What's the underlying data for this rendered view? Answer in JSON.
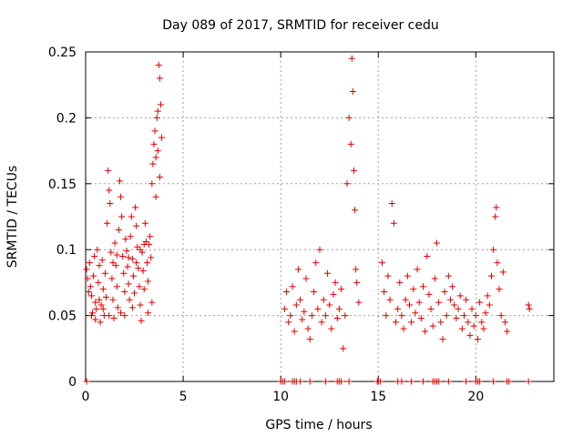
{
  "chart_data": {
    "type": "scatter",
    "title": "Day 089 of 2017, SRMTID for receiver cedu",
    "xlabel": "GPS time / hours",
    "ylabel": "SRMTID / TECUs",
    "xlim": [
      0,
      24
    ],
    "ylim": [
      0,
      0.25
    ],
    "x_ticks": [
      0,
      5,
      10,
      15,
      20
    ],
    "x_tick_labels": [
      "0",
      "5",
      "10",
      "15",
      "20"
    ],
    "y_ticks": [
      0,
      0.05,
      0.1,
      0.15,
      0.2,
      0.25
    ],
    "y_tick_labels": [
      "0",
      "0.05",
      "0.1",
      "0.15",
      "0.2",
      "0.25"
    ],
    "grid": true,
    "marker": "+",
    "colors": {
      "marker": "#e00000",
      "grid": "#a0a0a0",
      "frame": "#000000"
    },
    "series": [
      {
        "name": "SRMTID",
        "points": [
          [
            0.05,
            0.085
          ],
          [
            0.1,
            0.078
          ],
          [
            0.15,
            0.068
          ],
          [
            0.2,
            0.09
          ],
          [
            0.25,
            0.072
          ],
          [
            0.3,
            0.065
          ],
          [
            0.35,
            0.052
          ],
          [
            0.4,
            0.08
          ],
          [
            0.45,
            0.095
          ],
          [
            0.5,
            0.06
          ],
          [
            0.55,
            0.055
          ],
          [
            0.6,
            0.1
          ],
          [
            0.65,
            0.075
          ],
          [
            0.7,
            0.088
          ],
          [
            0.75,
            0.045
          ],
          [
            0.8,
            0.058
          ],
          [
            0.85,
            0.092
          ],
          [
            0.9,
            0.07
          ],
          [
            0.95,
            0.05
          ],
          [
            1.0,
            0.082
          ],
          [
            1.05,
            0.064
          ],
          [
            1.1,
            0.12
          ],
          [
            1.15,
            0.16
          ],
          [
            1.2,
            0.145
          ],
          [
            1.25,
            0.135
          ],
          [
            1.3,
            0.098
          ],
          [
            1.35,
            0.078
          ],
          [
            1.4,
            0.062
          ],
          [
            1.45,
            0.048
          ],
          [
            1.5,
            0.105
          ],
          [
            1.55,
            0.088
          ],
          [
            1.6,
            0.072
          ],
          [
            1.65,
            0.056
          ],
          [
            1.7,
            0.115
          ],
          [
            1.75,
            0.152
          ],
          [
            1.8,
            0.14
          ],
          [
            1.85,
            0.125
          ],
          [
            1.9,
            0.095
          ],
          [
            1.95,
            0.082
          ],
          [
            2.0,
            0.068
          ],
          [
            2.05,
            0.108
          ],
          [
            2.1,
            0.099
          ],
          [
            2.15,
            0.087
          ],
          [
            2.2,
            0.074
          ],
          [
            2.25,
            0.062
          ],
          [
            2.3,
            0.11
          ],
          [
            2.35,
            0.125
          ],
          [
            2.4,
            0.093
          ],
          [
            2.45,
            0.08
          ],
          [
            2.5,
            0.067
          ],
          [
            2.55,
            0.132
          ],
          [
            2.6,
            0.118
          ],
          [
            2.65,
            0.102
          ],
          [
            2.7,
            0.086
          ],
          [
            2.75,
            0.072
          ],
          [
            2.8,
            0.058
          ],
          [
            2.85,
            0.046
          ],
          [
            2.9,
            0.098
          ],
          [
            2.95,
            0.084
          ],
          [
            3.0,
            0.07
          ],
          [
            3.05,
            0.12
          ],
          [
            3.1,
            0.106
          ],
          [
            3.15,
            0.09
          ],
          [
            3.2,
            0.076
          ],
          [
            3.25,
            0.104
          ],
          [
            3.3,
            0.11
          ],
          [
            3.35,
            0.094
          ],
          [
            3.4,
            0.15
          ],
          [
            3.45,
            0.165
          ],
          [
            3.5,
            0.18
          ],
          [
            3.55,
            0.19
          ],
          [
            3.6,
            0.17
          ],
          [
            3.65,
            0.2
          ],
          [
            3.7,
            0.205
          ],
          [
            3.75,
            0.24
          ],
          [
            3.8,
            0.23
          ],
          [
            3.85,
            0.21
          ],
          [
            3.9,
            0.185
          ],
          [
            0.3,
            0.05
          ],
          [
            0.5,
            0.047
          ],
          [
            0.7,
            0.062
          ],
          [
            0.9,
            0.055
          ],
          [
            1.2,
            0.05
          ],
          [
            1.4,
            0.09
          ],
          [
            1.6,
            0.096
          ],
          [
            1.8,
            0.052
          ],
          [
            2.0,
            0.05
          ],
          [
            2.2,
            0.094
          ],
          [
            2.4,
            0.056
          ],
          [
            2.6,
            0.09
          ],
          [
            2.8,
            0.1
          ],
          [
            3.0,
            0.104
          ],
          [
            3.2,
            0.052
          ],
          [
            3.4,
            0.06
          ],
          [
            3.6,
            0.14
          ],
          [
            3.7,
            0.175
          ],
          [
            3.8,
            0.155
          ],
          [
            10.2,
            0.055
          ],
          [
            10.3,
            0.068
          ],
          [
            10.4,
            0.045
          ],
          [
            10.5,
            0.05
          ],
          [
            10.6,
            0.072
          ],
          [
            10.7,
            0.038
          ],
          [
            10.8,
            0.058
          ],
          [
            10.9,
            0.085
          ],
          [
            11.0,
            0.062
          ],
          [
            11.1,
            0.047
          ],
          [
            11.2,
            0.053
          ],
          [
            11.3,
            0.078
          ],
          [
            11.4,
            0.04
          ],
          [
            11.5,
            0.032
          ],
          [
            11.6,
            0.05
          ],
          [
            11.7,
            0.068
          ],
          [
            11.8,
            0.09
          ],
          [
            11.9,
            0.055
          ],
          [
            12.0,
            0.1
          ],
          [
            12.1,
            0.045
          ],
          [
            12.2,
            0.062
          ],
          [
            12.3,
            0.05
          ],
          [
            12.4,
            0.082
          ],
          [
            12.5,
            0.058
          ],
          [
            12.6,
            0.04
          ],
          [
            12.7,
            0.066
          ],
          [
            12.8,
            0.075
          ],
          [
            12.9,
            0.048
          ],
          [
            13.0,
            0.055
          ],
          [
            13.1,
            0.07
          ],
          [
            13.2,
            0.025
          ],
          [
            13.3,
            0.05
          ],
          [
            13.4,
            0.15
          ],
          [
            13.5,
            0.2
          ],
          [
            13.6,
            0.18
          ],
          [
            13.65,
            0.245
          ],
          [
            13.7,
            0.22
          ],
          [
            13.75,
            0.16
          ],
          [
            13.8,
            0.13
          ],
          [
            13.85,
            0.085
          ],
          [
            13.9,
            0.075
          ],
          [
            14.0,
            0.06
          ],
          [
            15.2,
            0.09
          ],
          [
            15.3,
            0.068
          ],
          [
            15.4,
            0.05
          ],
          [
            15.5,
            0.08
          ],
          [
            15.6,
            0.062
          ],
          [
            15.7,
            0.135
          ],
          [
            15.8,
            0.12
          ],
          [
            15.9,
            0.045
          ],
          [
            16.0,
            0.055
          ],
          [
            16.1,
            0.075
          ],
          [
            16.2,
            0.05
          ],
          [
            16.3,
            0.04
          ],
          [
            16.4,
            0.062
          ],
          [
            16.5,
            0.08
          ],
          [
            16.6,
            0.058
          ],
          [
            16.7,
            0.045
          ],
          [
            16.8,
            0.07
          ],
          [
            16.9,
            0.052
          ],
          [
            17.0,
            0.085
          ],
          [
            17.1,
            0.06
          ],
          [
            17.2,
            0.048
          ],
          [
            17.3,
            0.072
          ],
          [
            17.4,
            0.038
          ],
          [
            17.5,
            0.095
          ],
          [
            17.6,
            0.066
          ],
          [
            17.7,
            0.055
          ],
          [
            17.8,
            0.042
          ],
          [
            17.9,
            0.078
          ],
          [
            18.0,
            0.105
          ],
          [
            18.1,
            0.06
          ],
          [
            18.2,
            0.045
          ],
          [
            18.3,
            0.032
          ],
          [
            18.4,
            0.068
          ],
          [
            18.5,
            0.05
          ],
          [
            18.6,
            0.08
          ],
          [
            18.7,
            0.062
          ],
          [
            18.8,
            0.072
          ],
          [
            18.9,
            0.058
          ],
          [
            19.0,
            0.048
          ],
          [
            19.1,
            0.055
          ],
          [
            19.2,
            0.065
          ],
          [
            19.3,
            0.04
          ],
          [
            19.4,
            0.05
          ],
          [
            19.5,
            0.062
          ],
          [
            19.6,
            0.045
          ],
          [
            19.7,
            0.035
          ],
          [
            19.8,
            0.055
          ],
          [
            19.9,
            0.042
          ],
          [
            20.0,
            0.05
          ],
          [
            20.1,
            0.032
          ],
          [
            20.2,
            0.06
          ],
          [
            20.3,
            0.045
          ],
          [
            20.4,
            0.04
          ],
          [
            20.5,
            0.052
          ],
          [
            20.6,
            0.065
          ],
          [
            20.7,
            0.058
          ],
          [
            20.8,
            0.08
          ],
          [
            20.9,
            0.1
          ],
          [
            21.0,
            0.125
          ],
          [
            21.05,
            0.132
          ],
          [
            21.1,
            0.09
          ],
          [
            21.2,
            0.07
          ],
          [
            21.3,
            0.05
          ],
          [
            21.4,
            0.083
          ],
          [
            21.5,
            0.045
          ],
          [
            21.6,
            0.038
          ],
          [
            22.7,
            0.058
          ],
          [
            22.75,
            0.055
          ],
          [
            0.05,
            0
          ],
          [
            10.0,
            0
          ],
          [
            10.1,
            0
          ],
          [
            10.2,
            0
          ],
          [
            10.6,
            0
          ],
          [
            10.7,
            0
          ],
          [
            10.8,
            0
          ],
          [
            11.0,
            0
          ],
          [
            11.5,
            0
          ],
          [
            12.3,
            0
          ],
          [
            12.9,
            0
          ],
          [
            13.0,
            0
          ],
          [
            13.1,
            0
          ],
          [
            13.5,
            0
          ],
          [
            14.95,
            0
          ],
          [
            15.0,
            0
          ],
          [
            15.1,
            0
          ],
          [
            16.0,
            0
          ],
          [
            16.2,
            0
          ],
          [
            16.7,
            0
          ],
          [
            17.3,
            0
          ],
          [
            17.8,
            0
          ],
          [
            17.9,
            0
          ],
          [
            18.0,
            0
          ],
          [
            18.1,
            0
          ],
          [
            18.6,
            0
          ],
          [
            19.5,
            0
          ],
          [
            20.0,
            0
          ],
          [
            20.1,
            0
          ],
          [
            20.2,
            0
          ],
          [
            20.9,
            0
          ],
          [
            21.6,
            0
          ],
          [
            21.7,
            0
          ],
          [
            22.7,
            0
          ]
        ]
      }
    ]
  }
}
